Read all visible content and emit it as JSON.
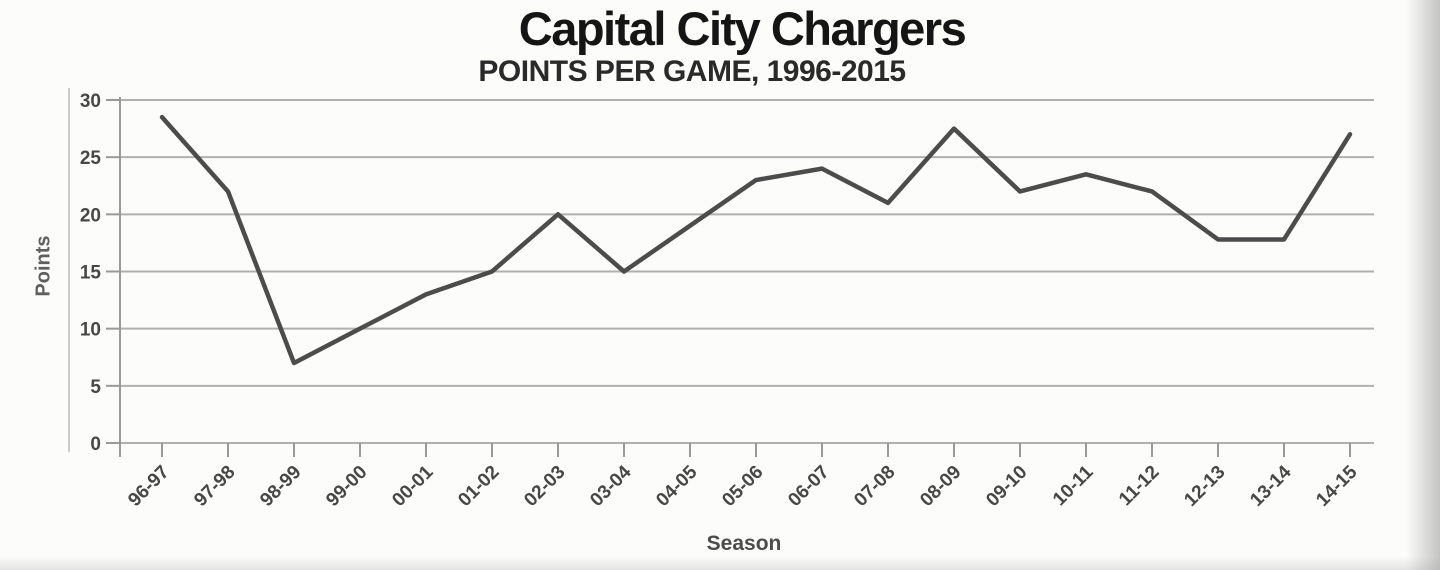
{
  "chart_data": {
    "type": "line",
    "title": "Capital City Chargers",
    "subtitle": "POINTS PER GAME, 1996-2015",
    "xlabel": "Season",
    "ylabel": "Points",
    "ylim": [
      0,
      30
    ],
    "y_ticks": [
      0,
      5,
      10,
      15,
      20,
      25,
      30
    ],
    "grid": true,
    "legend": false,
    "categories": [
      "96-97",
      "97-98",
      "98-99",
      "99-00",
      "00-01",
      "01-02",
      "02-03",
      "03-04",
      "04-05",
      "05-06",
      "06-07",
      "07-08",
      "08-09",
      "09-10",
      "10-11",
      "11-12",
      "12-13",
      "13-14",
      "14-15"
    ],
    "series": [
      {
        "name": "Points per game",
        "values": [
          28.5,
          22,
          7,
          10,
          13,
          15,
          20,
          15,
          19,
          23,
          24,
          21,
          27.5,
          22,
          23.5,
          22,
          17.8,
          17.8,
          27
        ]
      }
    ],
    "line_color": "#4c4c4c",
    "grid_color": "#b0b0b0",
    "axis_color": "#999999",
    "tick_label_color": "#474747"
  }
}
